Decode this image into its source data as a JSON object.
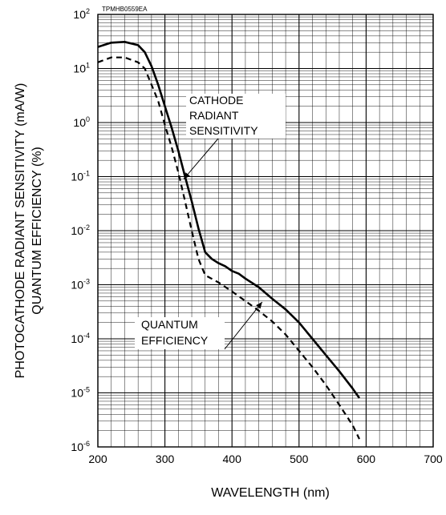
{
  "chart_data": {
    "type": "line",
    "figure_code": "TPMHB0559EA",
    "xlabel": "WAVELENGTH (nm)",
    "ylabel": [
      "PHOTOCATHODE RADIANT SENSITIVITY (mA/W)",
      "QUANTUM EFFICIENCY (%)"
    ],
    "xlim": [
      200,
      700
    ],
    "ylim": [
      1e-06,
      100
    ],
    "yscale": "log",
    "grid": true,
    "x_ticks": [
      "200",
      "300",
      "400",
      "500",
      "600",
      "700"
    ],
    "y_ticks": [
      {
        "base": "10",
        "exp": "2",
        "value": 100
      },
      {
        "base": "10",
        "exp": "1",
        "value": 10
      },
      {
        "base": "10",
        "exp": "0",
        "value": 1
      },
      {
        "base": "10",
        "exp": "-1",
        "value": 0.1
      },
      {
        "base": "10",
        "exp": "-2",
        "value": 0.01
      },
      {
        "base": "10",
        "exp": "-3",
        "value": 0.001
      },
      {
        "base": "10",
        "exp": "-4",
        "value": 0.0001
      },
      {
        "base": "10",
        "exp": "-5",
        "value": 1e-05
      },
      {
        "base": "10",
        "exp": "-6",
        "value": 1e-06
      }
    ],
    "series": [
      {
        "style": "solid",
        "x": [
          200,
          220,
          240,
          260,
          270,
          280,
          290,
          300,
          310,
          320,
          330,
          340,
          350,
          360,
          370,
          380,
          390,
          400,
          410,
          420,
          440,
          460,
          480,
          500,
          520,
          540,
          560,
          580,
          590
        ],
        "y": [
          25,
          30,
          31,
          27,
          20,
          11,
          5,
          2,
          0.8,
          0.3,
          0.1,
          0.035,
          0.011,
          0.004,
          0.003,
          0.0025,
          0.0022,
          0.0018,
          0.0016,
          0.0013,
          0.0009,
          0.00055,
          0.00035,
          0.0002,
          0.0001,
          5e-05,
          2.5e-05,
          1.2e-05,
          8e-06
        ]
      },
      {
        "style": "dashed",
        "x": [
          200,
          220,
          240,
          260,
          270,
          280,
          290,
          300,
          310,
          320,
          330,
          340,
          350,
          360,
          380,
          400,
          420,
          440,
          460,
          480,
          500,
          520,
          540,
          560,
          580,
          590
        ],
        "y": [
          13,
          16,
          16,
          13,
          10,
          5,
          2.5,
          0.9,
          0.35,
          0.12,
          0.035,
          0.01,
          0.003,
          0.0015,
          0.0011,
          0.00075,
          0.0005,
          0.00033,
          0.00021,
          0.00012,
          6e-05,
          3e-05,
          1.4e-05,
          6e-06,
          2.5e-06,
          1.4e-06
        ]
      }
    ],
    "annotations": [
      {
        "lines": [
          "CATHODE",
          "RADIANT",
          "SENSITIVITY"
        ],
        "points_to_series": 0,
        "anchor_x": 328,
        "anchor_y": 0.09
      },
      {
        "lines": [
          "QUANTUM",
          "EFFICIENCY"
        ],
        "points_to_series": 1,
        "anchor_x": 445,
        "anchor_y": 0.00048
      }
    ]
  }
}
